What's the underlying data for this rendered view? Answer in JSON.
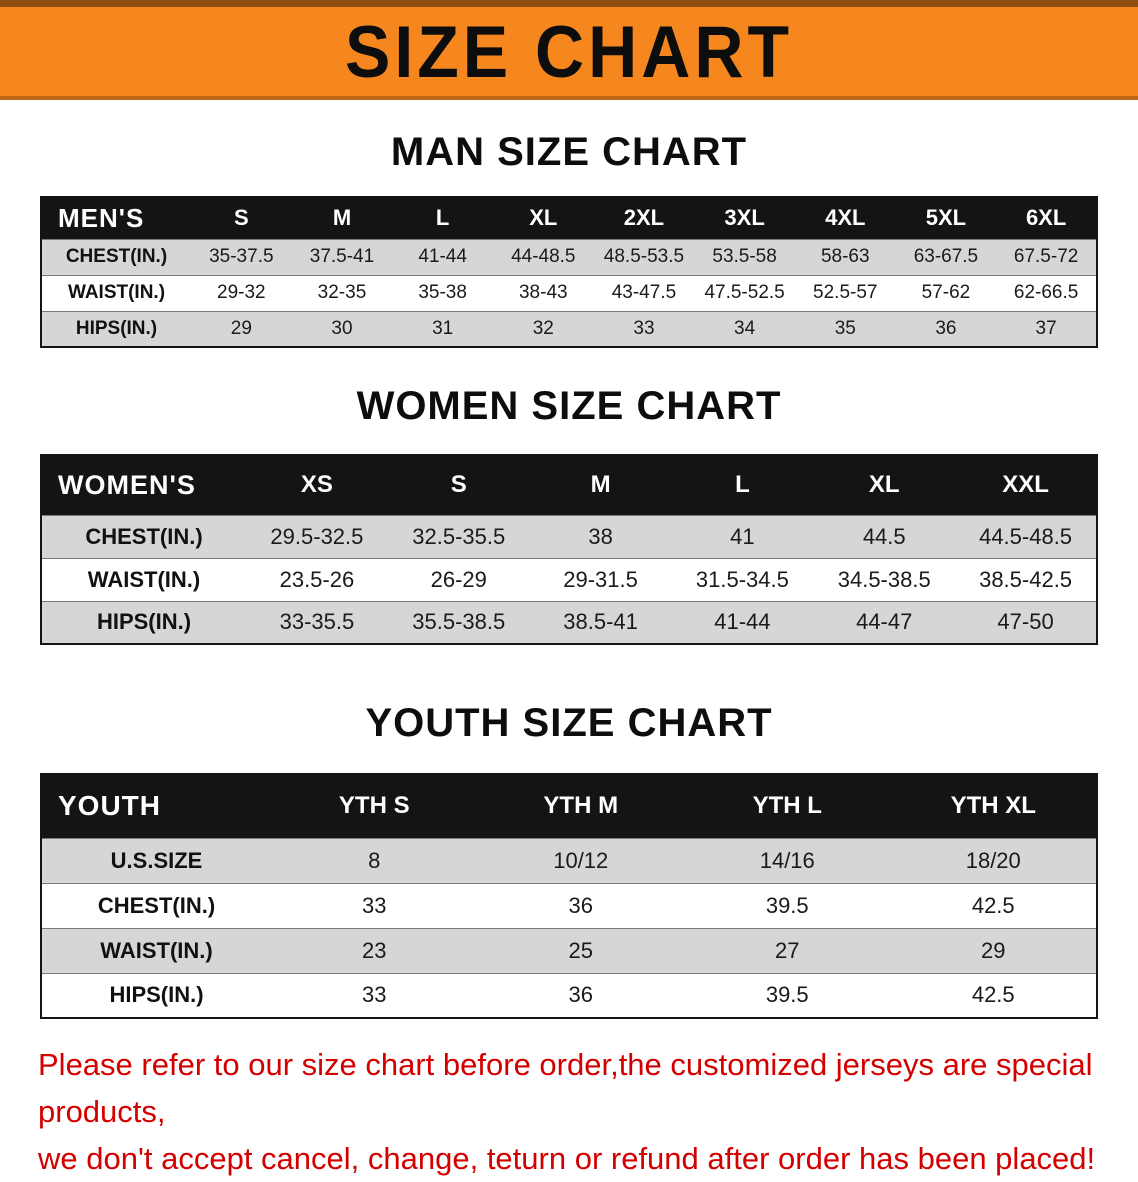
{
  "banner": {
    "title": "SIZE CHART",
    "bg_color": "#f6871f"
  },
  "sections": [
    {
      "heading": "MAN SIZE CHART",
      "table": {
        "header": [
          "MEN'S",
          "S",
          "M",
          "L",
          "XL",
          "2XL",
          "3XL",
          "4XL",
          "5XL",
          "6XL"
        ],
        "rows": [
          [
            "CHEST(IN.)",
            "35-37.5",
            "37.5-41",
            "41-44",
            "44-48.5",
            "48.5-53.5",
            "53.5-58",
            "58-63",
            "63-67.5",
            "67.5-72"
          ],
          [
            "WAIST(IN.)",
            "29-32",
            "32-35",
            "35-38",
            "38-43",
            "43-47.5",
            "47.5-52.5",
            "52.5-57",
            "57-62",
            "62-66.5"
          ],
          [
            "HIPS(IN.)",
            "29",
            "30",
            "31",
            "32",
            "33",
            "34",
            "35",
            "36",
            "37"
          ]
        ]
      }
    },
    {
      "heading": "WOMEN SIZE CHART",
      "table": {
        "header": [
          "WOMEN'S",
          "XS",
          "S",
          "M",
          "L",
          "XL",
          "XXL"
        ],
        "rows": [
          [
            "CHEST(IN.)",
            "29.5-32.5",
            "32.5-35.5",
            "38",
            "41",
            "44.5",
            "44.5-48.5"
          ],
          [
            "WAIST(IN.)",
            "23.5-26",
            "26-29",
            "29-31.5",
            "31.5-34.5",
            "34.5-38.5",
            "38.5-42.5"
          ],
          [
            "HIPS(IN.)",
            "33-35.5",
            "35.5-38.5",
            "38.5-41",
            "41-44",
            "44-47",
            "47-50"
          ]
        ]
      }
    },
    {
      "heading": "YOUTH SIZE CHART",
      "table": {
        "header": [
          "YOUTH",
          "YTH S",
          "YTH M",
          "YTH L",
          "YTH XL"
        ],
        "rows": [
          [
            "U.S.SIZE",
            "8",
            "10/12",
            "14/16",
            "18/20"
          ],
          [
            "CHEST(IN.)",
            "33",
            "36",
            "39.5",
            "42.5"
          ],
          [
            "WAIST(IN.)",
            "23",
            "25",
            "27",
            "29"
          ],
          [
            "HIPS(IN.)",
            "33",
            "36",
            "39.5",
            "42.5"
          ]
        ]
      }
    }
  ],
  "footer": {
    "line1": "Please refer to our size chart before order,the customized jerseys are special products,",
    "line2": "we don't accept cancel, change, teturn or refund after order has been placed!",
    "color": "#d40000"
  }
}
